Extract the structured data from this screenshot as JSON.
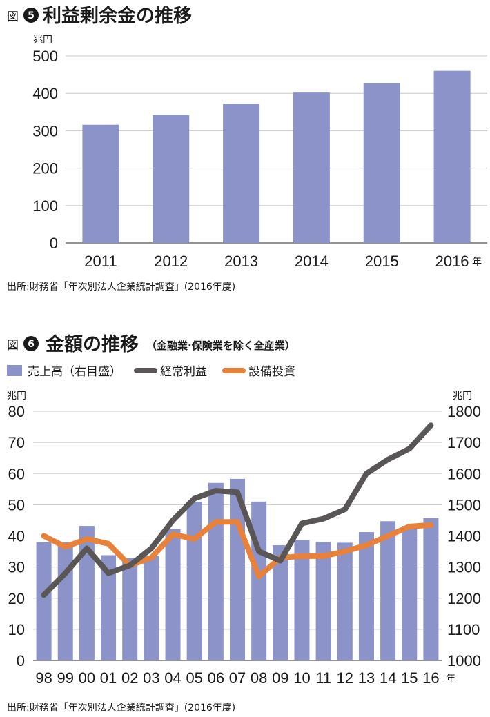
{
  "colors": {
    "bar": "#8c93c8",
    "profit": "#5a5656",
    "capex": "#e8823a",
    "text": "#1a1a1a"
  },
  "chart_data": [
    {
      "type": "bar",
      "figure_label": "図",
      "figure_number": "5",
      "title": "利益剰余金の推移",
      "y_unit": "兆円",
      "x_unit": "年",
      "categories": [
        "2011",
        "2012",
        "2013",
        "2014",
        "2015",
        "2016"
      ],
      "values": [
        316,
        342,
        372,
        402,
        428,
        460
      ],
      "ylim": [
        0,
        500
      ],
      "y_ticks": [
        0,
        100,
        200,
        300,
        400,
        500
      ],
      "grid": true,
      "source": "出所:財務省「年次別法人企業統計調査」(2016年度)"
    },
    {
      "type": "bar+line",
      "figure_label": "図",
      "figure_number": "6",
      "title": "金額の推移",
      "subtitle": "（金融業·保険業を除く全産業）",
      "left_unit": "兆円",
      "right_unit": "兆円",
      "x_unit": "年",
      "categories": [
        "98",
        "99",
        "00",
        "01",
        "02",
        "03",
        "04",
        "05",
        "06",
        "07",
        "08",
        "09",
        "10",
        "11",
        "12",
        "13",
        "14",
        "15",
        "16"
      ],
      "left_ylim": [
        0,
        80
      ],
      "left_ticks": [
        0,
        10,
        20,
        30,
        40,
        50,
        60,
        70,
        80
      ],
      "right_ylim": [
        1000,
        1800
      ],
      "right_ticks": [
        1000,
        1100,
        1200,
        1300,
        1400,
        1500,
        1600,
        1700,
        1800
      ],
      "series": [
        {
          "name": "売上高（右目盛）",
          "type": "bar",
          "axis": "right",
          "values": [
            1380,
            1380,
            1432,
            1338,
            1330,
            1335,
            1422,
            1510,
            1570,
            1583,
            1510,
            1370,
            1387,
            1380,
            1378,
            1412,
            1447,
            1432,
            1457
          ]
        },
        {
          "name": "経常利益",
          "type": "line",
          "axis": "left",
          "values": [
            21,
            28,
            36,
            28,
            30.5,
            36,
            45,
            52,
            54.5,
            54,
            35,
            32,
            44,
            45.5,
            48.5,
            60,
            64.5,
            68,
            75.5
          ]
        },
        {
          "name": "設備投資",
          "type": "line",
          "axis": "left",
          "values": [
            40,
            36.5,
            39,
            37.5,
            30.5,
            33,
            40.5,
            39,
            44.5,
            44.5,
            27,
            33,
            33.5,
            33.5,
            35,
            37,
            40,
            43,
            43.5
          ]
        }
      ],
      "source": "出所:財務省「年次別法人企業統計調査」(2016年度)"
    }
  ]
}
